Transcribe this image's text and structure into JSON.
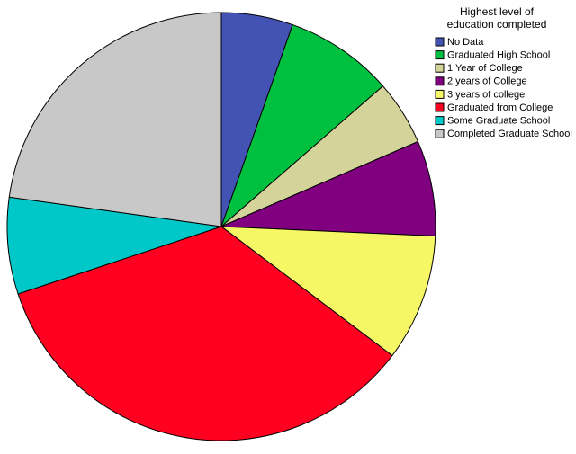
{
  "chart_data": {
    "type": "pie",
    "legend_title": "Highest level of education completed",
    "categories": [
      "No Data",
      "Graduated High School",
      "1 Year of College",
      "2 years of College",
      "3 years of college",
      "Graduated from College",
      "Some Graduate School",
      "Completed Graduate School"
    ],
    "values": [
      5.4,
      8.2,
      4.9,
      7.2,
      9.6,
      34.6,
      7.3,
      22.8
    ],
    "colors": [
      "#4353b3",
      "#00c040",
      "#d4d39a",
      "#800080",
      "#f7f765",
      "#ff0020",
      "#00c8c8",
      "#c8c8c8"
    ],
    "legend": "top-right"
  }
}
